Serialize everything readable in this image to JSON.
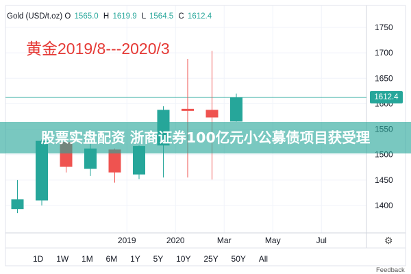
{
  "header": {
    "symbol": "Gold (USD/t.oz)",
    "open_label": "O",
    "open_value": "1565.0",
    "high_label": "H",
    "high_value": "1619.9",
    "low_label": "L",
    "low_value": "1564.5",
    "close_label": "C",
    "close_value": "1612.4"
  },
  "annotation": "黄金2019/8---2020/3",
  "banner": "股票实盘配资 浙商证券100亿元小公募债项目获受理",
  "last_price": "1612.4",
  "range_buttons": [
    "1D",
    "1W",
    "1M",
    "6M",
    "1Y",
    "5Y",
    "10Y",
    "25Y",
    "50Y",
    "All"
  ],
  "feedback_label": "Feedback",
  "icons": {
    "settings": "gear-icon"
  },
  "colors": {
    "up": "#26a69a",
    "down": "#ef5350",
    "accent": "#26a69a"
  },
  "chart_data": {
    "type": "candlestick",
    "y_axis": {
      "position": "right",
      "range": [
        1365,
        1775
      ],
      "ticks": [
        1400,
        1450,
        1500,
        1550,
        1600,
        1650,
        1700,
        1750
      ]
    },
    "x_axis": {
      "ticks": [
        {
          "label": "2019",
          "at": 4.5
        },
        {
          "label": "2020",
          "at": 6.5
        },
        {
          "label": "Mar",
          "at": 8.5
        },
        {
          "label": "May",
          "at": 10.5
        },
        {
          "label": "Jul",
          "at": 12.5
        }
      ]
    },
    "candles": [
      {
        "i": 0,
        "open": 1393,
        "high": 1450,
        "low": 1385,
        "close": 1412
      },
      {
        "i": 1,
        "open": 1410,
        "high": 1530,
        "low": 1400,
        "close": 1527
      },
      {
        "i": 2,
        "open": 1525,
        "high": 1532,
        "low": 1465,
        "close": 1476
      },
      {
        "i": 3,
        "open": 1472,
        "high": 1524,
        "low": 1458,
        "close": 1512
      },
      {
        "i": 4,
        "open": 1510,
        "high": 1512,
        "low": 1445,
        "close": 1465
      },
      {
        "i": 5,
        "open": 1461,
        "high": 1518,
        "low": 1452,
        "close": 1517
      },
      {
        "i": 6,
        "open": 1518,
        "high": 1595,
        "low": 1455,
        "close": 1588
      },
      {
        "i": 7,
        "open": 1590,
        "high": 1688,
        "low": 1455,
        "close": 1587
      },
      {
        "i": 8,
        "open": 1588,
        "high": 1704,
        "low": 1451,
        "close": 1573
      },
      {
        "i": 9,
        "open": 1565.0,
        "high": 1619.9,
        "low": 1564.5,
        "close": 1612.4
      }
    ],
    "last_price_line": 1612.4
  }
}
